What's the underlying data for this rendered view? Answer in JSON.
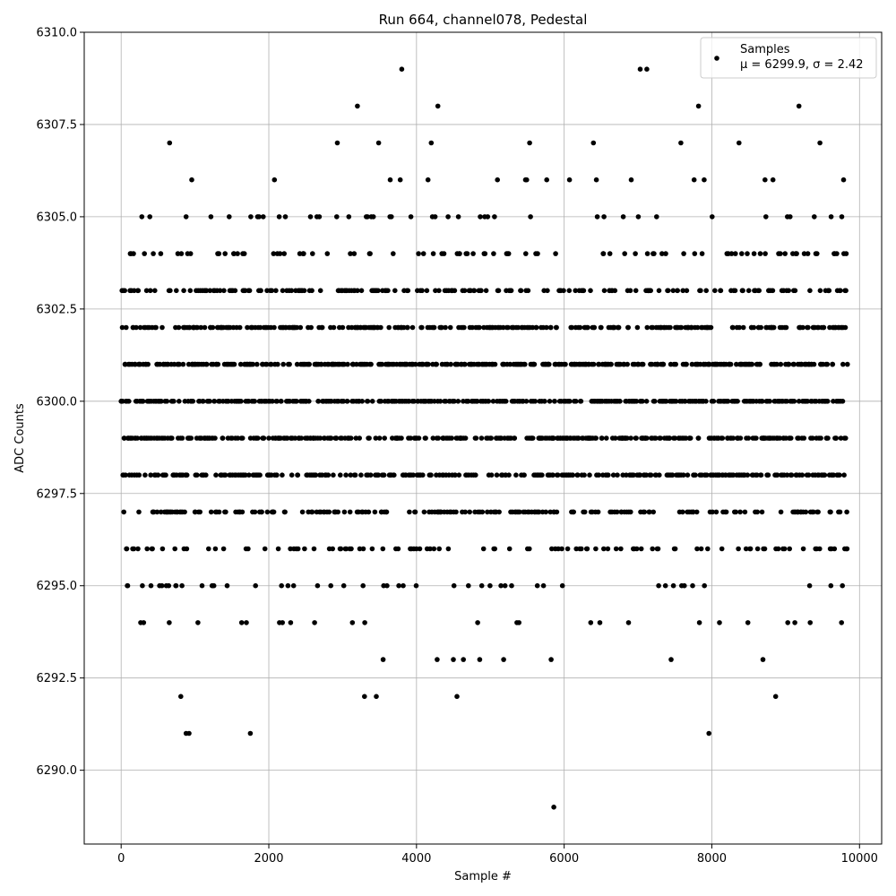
{
  "chart_data": {
    "type": "scatter",
    "title": "Run 664, channel078, Pedestal",
    "xlabel": "Sample #",
    "ylabel": "ADC Counts",
    "xlim": [
      -500,
      10300
    ],
    "ylim": [
      6288.0,
      6310.0
    ],
    "xticks": [
      0,
      2000,
      4000,
      6000,
      8000,
      10000
    ],
    "xtick_labels": [
      "0",
      "2000",
      "4000",
      "6000",
      "8000",
      "10000"
    ],
    "yticks": [
      6290.0,
      6292.5,
      6295.0,
      6297.5,
      6300.0,
      6302.5,
      6305.0,
      6307.5,
      6310.0
    ],
    "ytick_labels": [
      "6290.0",
      "6292.5",
      "6295.0",
      "6297.5",
      "6300.0",
      "6302.5",
      "6305.0",
      "6307.5",
      "6310.0"
    ],
    "grid": true,
    "legend_position": "top-right",
    "marker_color": "#000000",
    "series": [
      {
        "name": "Samples",
        "stats_label": "μ = 6299.9, σ = 2.42",
        "mu": 6299.9,
        "sigma": 2.42,
        "n_samples": 9840,
        "outlier_points": [
          {
            "x": 3800,
            "y": 6309
          },
          {
            "x": 7030,
            "y": 6309
          },
          {
            "x": 7120,
            "y": 6309
          },
          {
            "x": 3200,
            "y": 6308
          },
          {
            "x": 4290,
            "y": 6308
          },
          {
            "x": 7820,
            "y": 6308
          },
          {
            "x": 9180,
            "y": 6308
          },
          {
            "x": 5860,
            "y": 6289
          },
          {
            "x": 880,
            "y": 6291
          },
          {
            "x": 920,
            "y": 6291
          },
          {
            "x": 1750,
            "y": 6291
          },
          {
            "x": 7960,
            "y": 6291
          }
        ]
      }
    ]
  }
}
